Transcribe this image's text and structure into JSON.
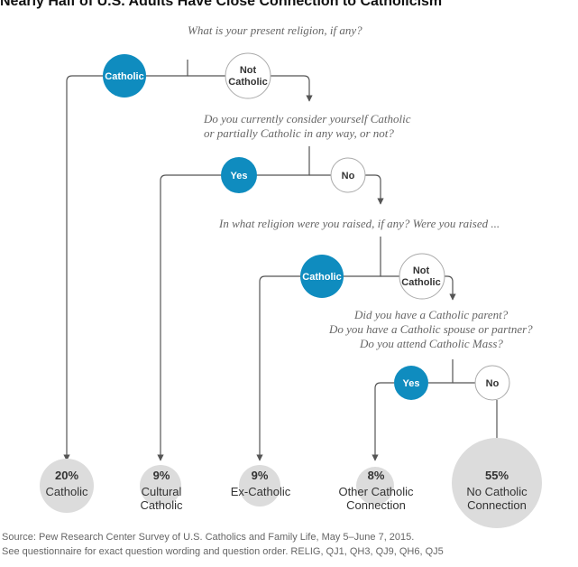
{
  "title": "Nearly Half of U.S. Adults Have Close Connection to Catholicism",
  "questions": {
    "q1": "What is your present religion, if any?",
    "q2_line1": "Do you currently consider yourself Catholic",
    "q2_line2": "or partially Catholic in any way, or not?",
    "q3": "In what religion were you raised, if any? Were you raised ...",
    "q4_line1": "Did you have a Catholic parent?",
    "q4_line2": "Do you have a Catholic spouse or partner?",
    "q4_line3": "Do you attend Catholic Mass?"
  },
  "nodes": {
    "n1_yes": "Catholic",
    "n1_no_line1": "Not",
    "n1_no_line2": "Catholic",
    "n2_yes": "Yes",
    "n2_no": "No",
    "n3_yes": "Catholic",
    "n3_no_line1": "Not",
    "n3_no_line2": "Catholic",
    "n4_yes": "Yes",
    "n4_no": "No"
  },
  "outcomes": [
    {
      "pct": "20%",
      "line1": "Catholic",
      "line2": ""
    },
    {
      "pct": "9%",
      "line1": "Cultural",
      "line2": "Catholic"
    },
    {
      "pct": "9%",
      "line1": "Ex-Catholic",
      "line2": ""
    },
    {
      "pct": "8%",
      "line1": "Other Catholic",
      "line2": "Connection"
    },
    {
      "pct": "55%",
      "line1": "No Catholic",
      "line2": "Connection"
    }
  ],
  "source": {
    "line1": "Source: Pew Research Center Survey of U.S. Catholics and Family Life, May 5–June 7, 2015.",
    "line2": "See questionnaire for exact question wording and question order. RELIG, QJ1, QH3, QJ9, QH6, QJ5"
  },
  "colors": {
    "accent": "#0f8cbf",
    "outcome_fill": "#dcdcdc",
    "line": "#555555",
    "text": "#333333",
    "question": "#666666"
  }
}
